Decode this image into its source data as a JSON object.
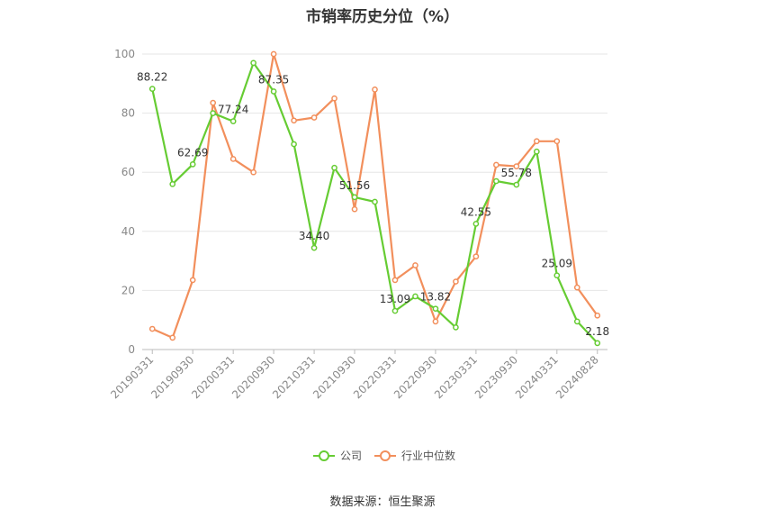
{
  "title": "市销率历史分位（%）",
  "source": "数据来源：恒生聚源",
  "chart_data": {
    "type": "line",
    "title": "市销率历史分位（%）",
    "ylim": [
      0,
      100
    ],
    "yticks": [
      "0",
      "20",
      "40",
      "60",
      "80",
      "100"
    ],
    "xticklabels": [
      "20190331",
      "20190930",
      "20200331",
      "20200930",
      "20210331",
      "20210930",
      "20220331",
      "20220930",
      "20230331",
      "20230930",
      "20240331",
      "20240828"
    ],
    "grid": true,
    "legend_position": "bottom",
    "series": [
      {
        "name": "公司",
        "color": "#66cc33",
        "values": [
          88.22,
          56,
          62.69,
          80,
          77.24,
          97,
          87.35,
          69.5,
          34.4,
          61.5,
          51.56,
          50,
          13.09,
          18,
          13.82,
          7.5,
          42.55,
          57,
          55.78,
          67,
          25.09,
          9.5,
          2.18
        ],
        "labels": {
          "0": "88.22",
          "2": "62.69",
          "4": "77.24",
          "6": "87.35",
          "8": "34.40",
          "10": "51.56",
          "12": "13.09",
          "14": "13.82",
          "16": "42.55",
          "18": "55.78",
          "20": "25.09",
          "22": "2.18"
        }
      },
      {
        "name": "行业中位数",
        "color": "#f28f5c",
        "values": [
          7,
          4,
          23.5,
          83.5,
          64.5,
          60,
          100,
          77.5,
          78.5,
          85,
          47.5,
          88,
          23.5,
          28.5,
          9.5,
          23,
          31.5,
          62.5,
          62,
          70.5,
          70.5,
          21,
          11.5
        ]
      }
    ]
  }
}
